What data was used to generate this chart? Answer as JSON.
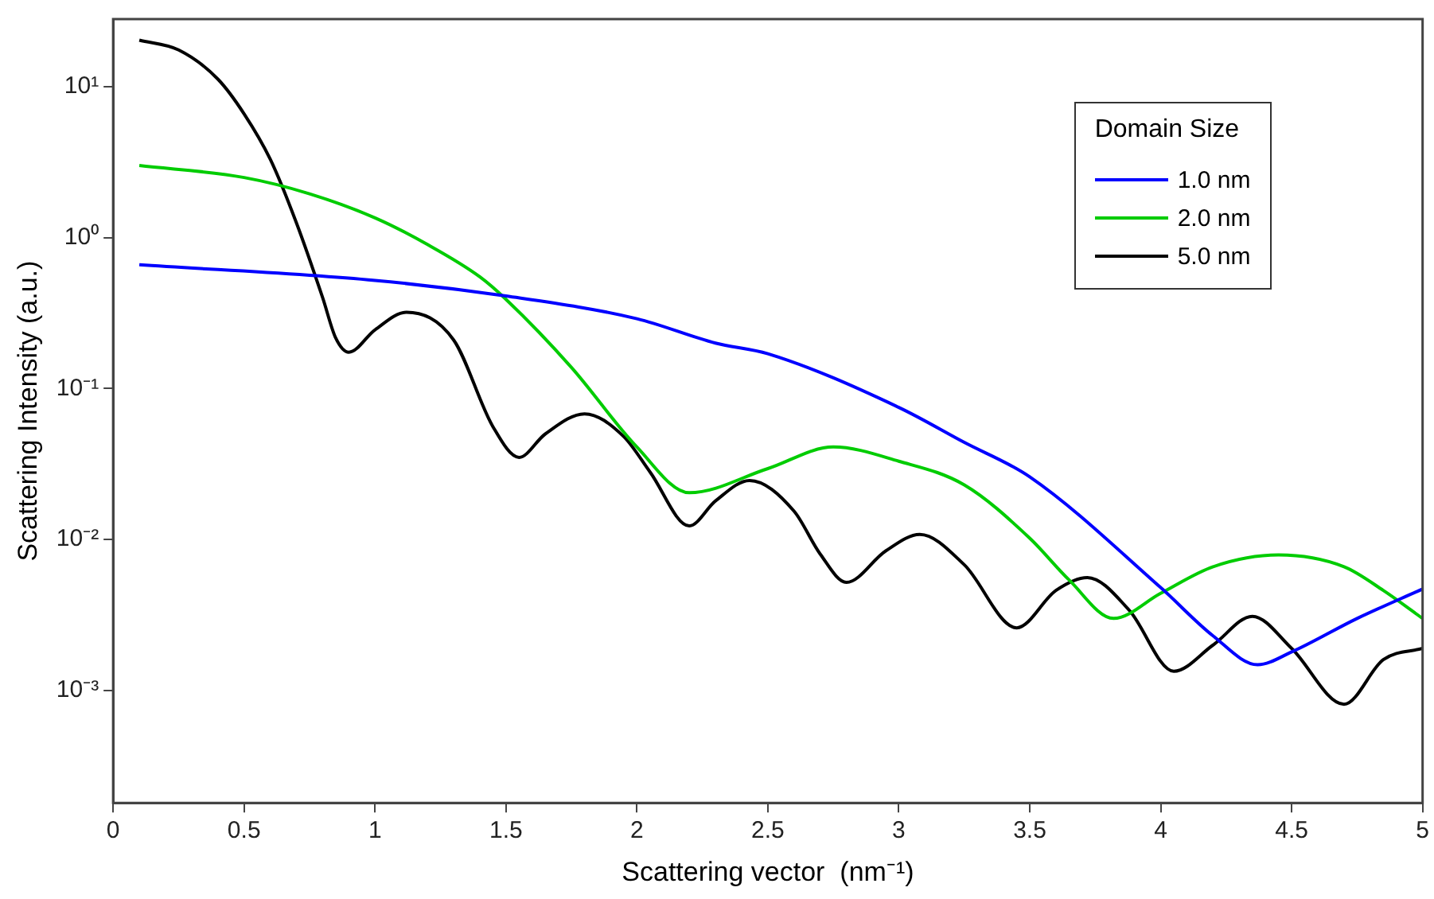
{
  "chart_data": {
    "type": "line",
    "xlabel": "Scattering vector  (nm⁻¹)",
    "ylabel": "Scattering Intensity (a.u.)",
    "legend_title": "Domain Size",
    "legend": "top right",
    "grid": false,
    "log": "y",
    "xlim": [
      0,
      5
    ],
    "xticks": [
      0,
      0.5,
      1,
      1.5,
      2,
      2.5,
      3,
      3.5,
      4,
      4.5,
      5
    ],
    "ylim": [
      0.00018,
      28
    ],
    "yticks": [
      {
        "value": 0.001,
        "label": "10⁻³"
      },
      {
        "value": 0.01,
        "label": "10⁻²"
      },
      {
        "value": 0.1,
        "label": "10⁻¹"
      },
      {
        "value": 1,
        "label": "10⁰"
      },
      {
        "value": 10,
        "label": "10¹"
      }
    ],
    "line_style": "solid",
    "marker": "none",
    "series": [
      {
        "name": "1.0 nm",
        "color": "#0000ff",
        "x": [
          0.1,
          1,
          1.5,
          2,
          2.3,
          2.5,
          3,
          3.25,
          3.5,
          4,
          4.2,
          4.37,
          4.5,
          4.75,
          5
        ],
        "values": [
          0.66,
          0.52,
          0.41,
          0.29,
          0.2,
          0.17,
          0.075,
          0.044,
          0.026,
          0.0048,
          0.0023,
          0.00148,
          0.0018,
          0.003,
          0.0047
        ]
      },
      {
        "name": "2.0 nm",
        "color": "#00cc00",
        "x": [
          0.1,
          0.5,
          0.75,
          1,
          1.2,
          1.4,
          1.5,
          1.75,
          2,
          2.2,
          2.5,
          2.75,
          3,
          3.25,
          3.5,
          3.65,
          3.82,
          4,
          4.2,
          4.45,
          4.7,
          4.85,
          5
        ],
        "values": [
          3.0,
          2.5,
          1.95,
          1.35,
          0.9,
          0.55,
          0.39,
          0.138,
          0.041,
          0.0204,
          0.0295,
          0.041,
          0.033,
          0.023,
          0.0102,
          0.0054,
          0.003,
          0.0044,
          0.0066,
          0.0079,
          0.0066,
          0.0046,
          0.003
        ]
      },
      {
        "name": "5.0 nm",
        "color": "#000000",
        "x": [
          0.1,
          0.25,
          0.4,
          0.5,
          0.6,
          0.7,
          0.8,
          0.85,
          0.9,
          1,
          1.12,
          1.3,
          1.45,
          1.55,
          1.65,
          1.8,
          1.95,
          2.05,
          2.2,
          2.3,
          2.43,
          2.6,
          2.7,
          2.8,
          2.95,
          3.08,
          3.25,
          3.45,
          3.6,
          3.72,
          3.88,
          4.05,
          4.2,
          4.35,
          4.5,
          4.7,
          4.85,
          5
        ],
        "values": [
          20.3,
          17.5,
          11.2,
          6.6,
          3.3,
          1.25,
          0.4,
          0.216,
          0.174,
          0.245,
          0.32,
          0.21,
          0.056,
          0.035,
          0.05,
          0.068,
          0.048,
          0.028,
          0.0123,
          0.018,
          0.0246,
          0.0154,
          0.008,
          0.0052,
          0.0084,
          0.0108,
          0.0068,
          0.0026,
          0.0046,
          0.0056,
          0.0034,
          0.00134,
          0.002,
          0.0031,
          0.0019,
          0.00081,
          0.0016,
          0.0019
        ]
      }
    ]
  }
}
